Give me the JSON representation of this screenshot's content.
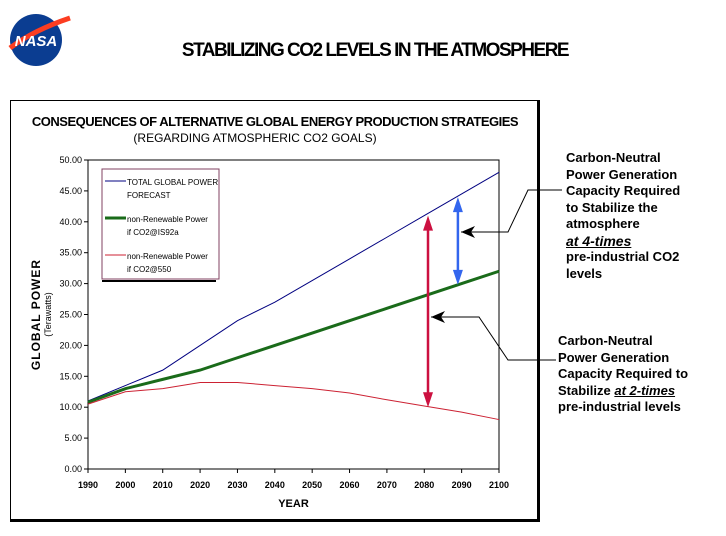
{
  "logo": {
    "text": "NASA",
    "colors": {
      "blue": "#0b3d91",
      "red": "#fc3d21"
    }
  },
  "page_title": "STABILIZING CO2 LEVELS IN THE ATMOSPHERE",
  "annotations": {
    "four_times": {
      "lines": [
        "Carbon-Neutral",
        "Power Generation",
        "Capacity Required",
        "to Stabilize the",
        "atmosphere"
      ],
      "emph": "at 4-times",
      "tail": [
        "pre-industrial CO2",
        "levels"
      ]
    },
    "two_times": {
      "lines": [
        "Carbon-Neutral",
        "Power Generation",
        "Capacity Required to"
      ],
      "line4_pre": "Stabilize ",
      "line4_emph": "at 2-times",
      "tail": [
        "pre-industrial levels"
      ]
    }
  },
  "chart_data": {
    "type": "line",
    "title": "CONSEQUENCES OF ALTERNATIVE GLOBAL ENERGY PRODUCTION STRATEGIES",
    "subtitle": "(REGARDING ATMOSPHERIC CO2 GOALS)",
    "xlabel": "YEAR",
    "ylabel": "GLOBAL POWER",
    "ylabel_sub": "(Terawatts)",
    "x": [
      1990,
      2000,
      2010,
      2020,
      2030,
      2040,
      2050,
      2060,
      2070,
      2080,
      2090,
      2100
    ],
    "ylim": [
      0,
      50
    ],
    "yticks": [
      "0.00",
      "5.00",
      "10.00",
      "15.00",
      "20.00",
      "25.00",
      "30.00",
      "35.00",
      "40.00",
      "45.00",
      "50.00"
    ],
    "legend_position": "top-left",
    "series": [
      {
        "name": "TOTAL GLOBAL POWER FORECAST",
        "legend": [
          "TOTAL GLOBAL POWER",
          "FORECAST"
        ],
        "color": "#000080",
        "values": [
          11,
          13.5,
          16,
          20,
          24,
          27,
          30.5,
          34,
          37.5,
          41,
          44.5,
          48
        ]
      },
      {
        "name": "non-Renewable Power if CO2@IS92a",
        "legend": [
          "non-Renewable Power",
          "if CO2@IS92a"
        ],
        "color": "#1a6b1a",
        "values": [
          10.8,
          13,
          14.5,
          16,
          18,
          20,
          22,
          24,
          26,
          28,
          30,
          32
        ]
      },
      {
        "name": "non-Renewable Power if CO2@550",
        "legend": [
          "non-Renewable Power",
          "if CO2@550"
        ],
        "color": "#cc2233",
        "values": [
          10.5,
          12.5,
          13,
          14,
          14,
          13.5,
          13,
          12.3,
          11.2,
          10.2,
          9.2,
          8
        ]
      }
    ],
    "arrows": [
      {
        "x": 2081,
        "from": 41,
        "to": 10,
        "color": "#cc1040"
      },
      {
        "x": 2089,
        "from": 44,
        "to": 29.8,
        "color": "#3366ee"
      }
    ]
  }
}
